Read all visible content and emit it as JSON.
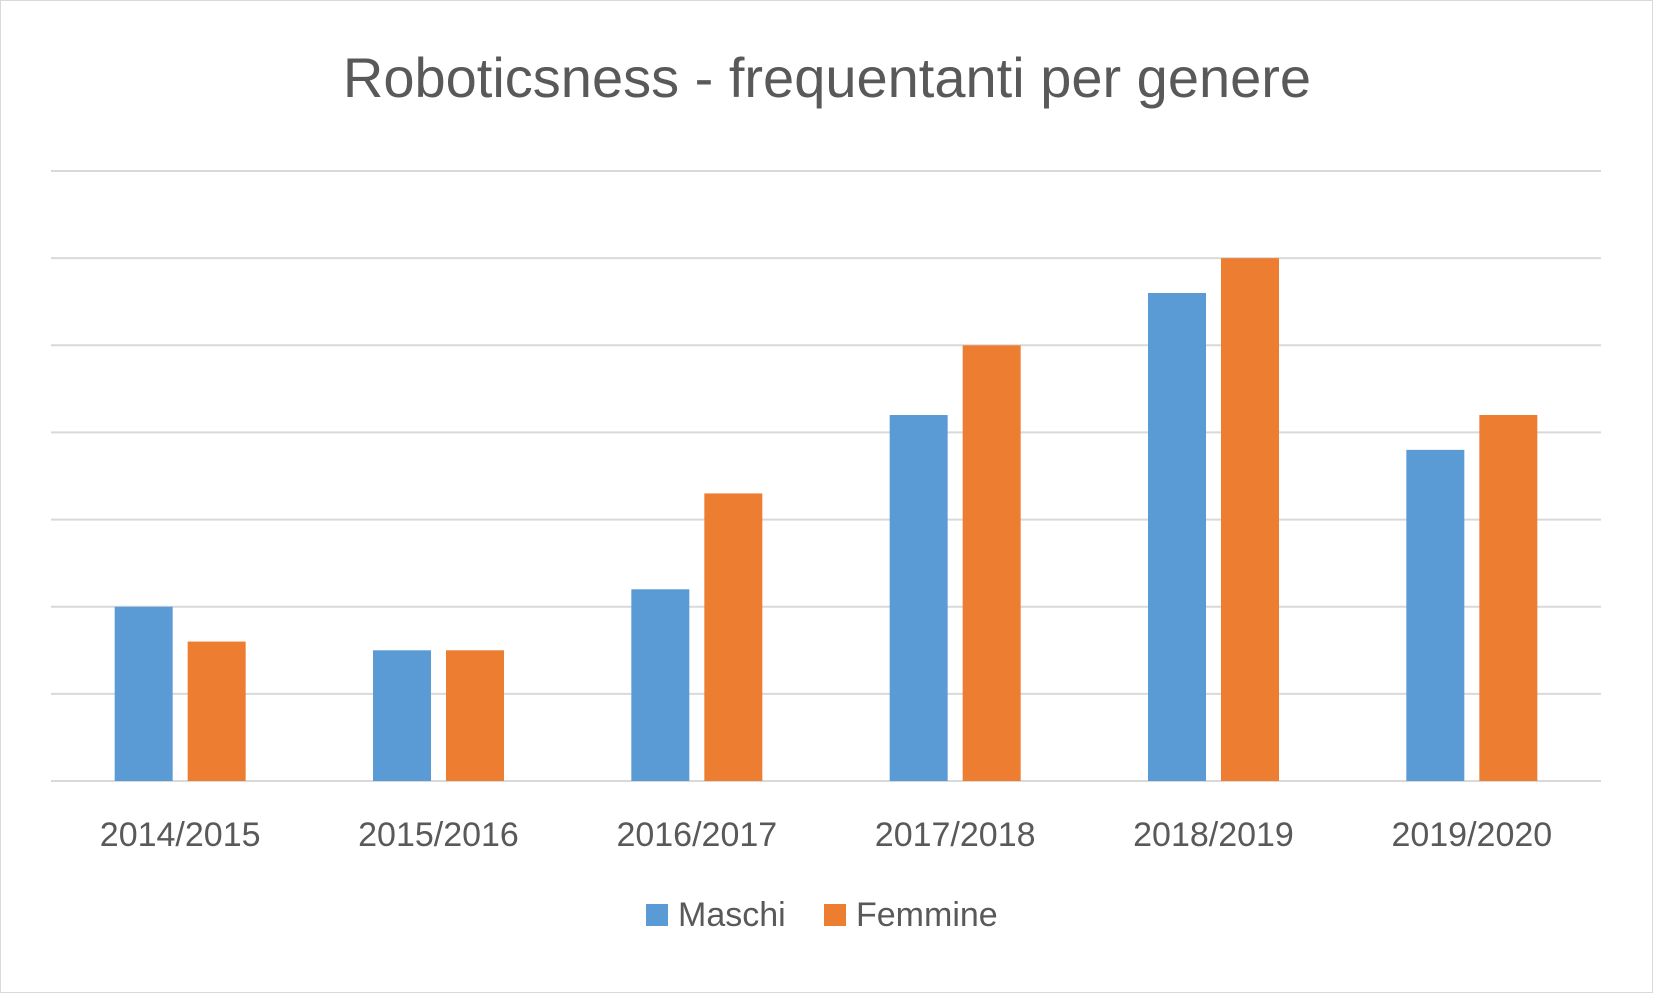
{
  "chart_data": {
    "type": "bar",
    "title": "Roboticsness - frequentanti per genere",
    "categories": [
      "2014/2015",
      "2015/2016",
      "2016/2017",
      "2017/2018",
      "2018/2019",
      "2019/2020"
    ],
    "series": [
      {
        "name": "Maschi",
        "values": [
          10,
          7.5,
          11,
          21,
          28,
          19
        ],
        "color": "#5b9bd5"
      },
      {
        "name": "Femmine",
        "values": [
          8,
          7.5,
          16.5,
          25,
          30,
          21
        ],
        "color": "#ed7d31"
      }
    ],
    "ylim": [
      0,
      35
    ],
    "grid": true,
    "legend_position": "bottom",
    "y_tick_labels_visible": false
  }
}
